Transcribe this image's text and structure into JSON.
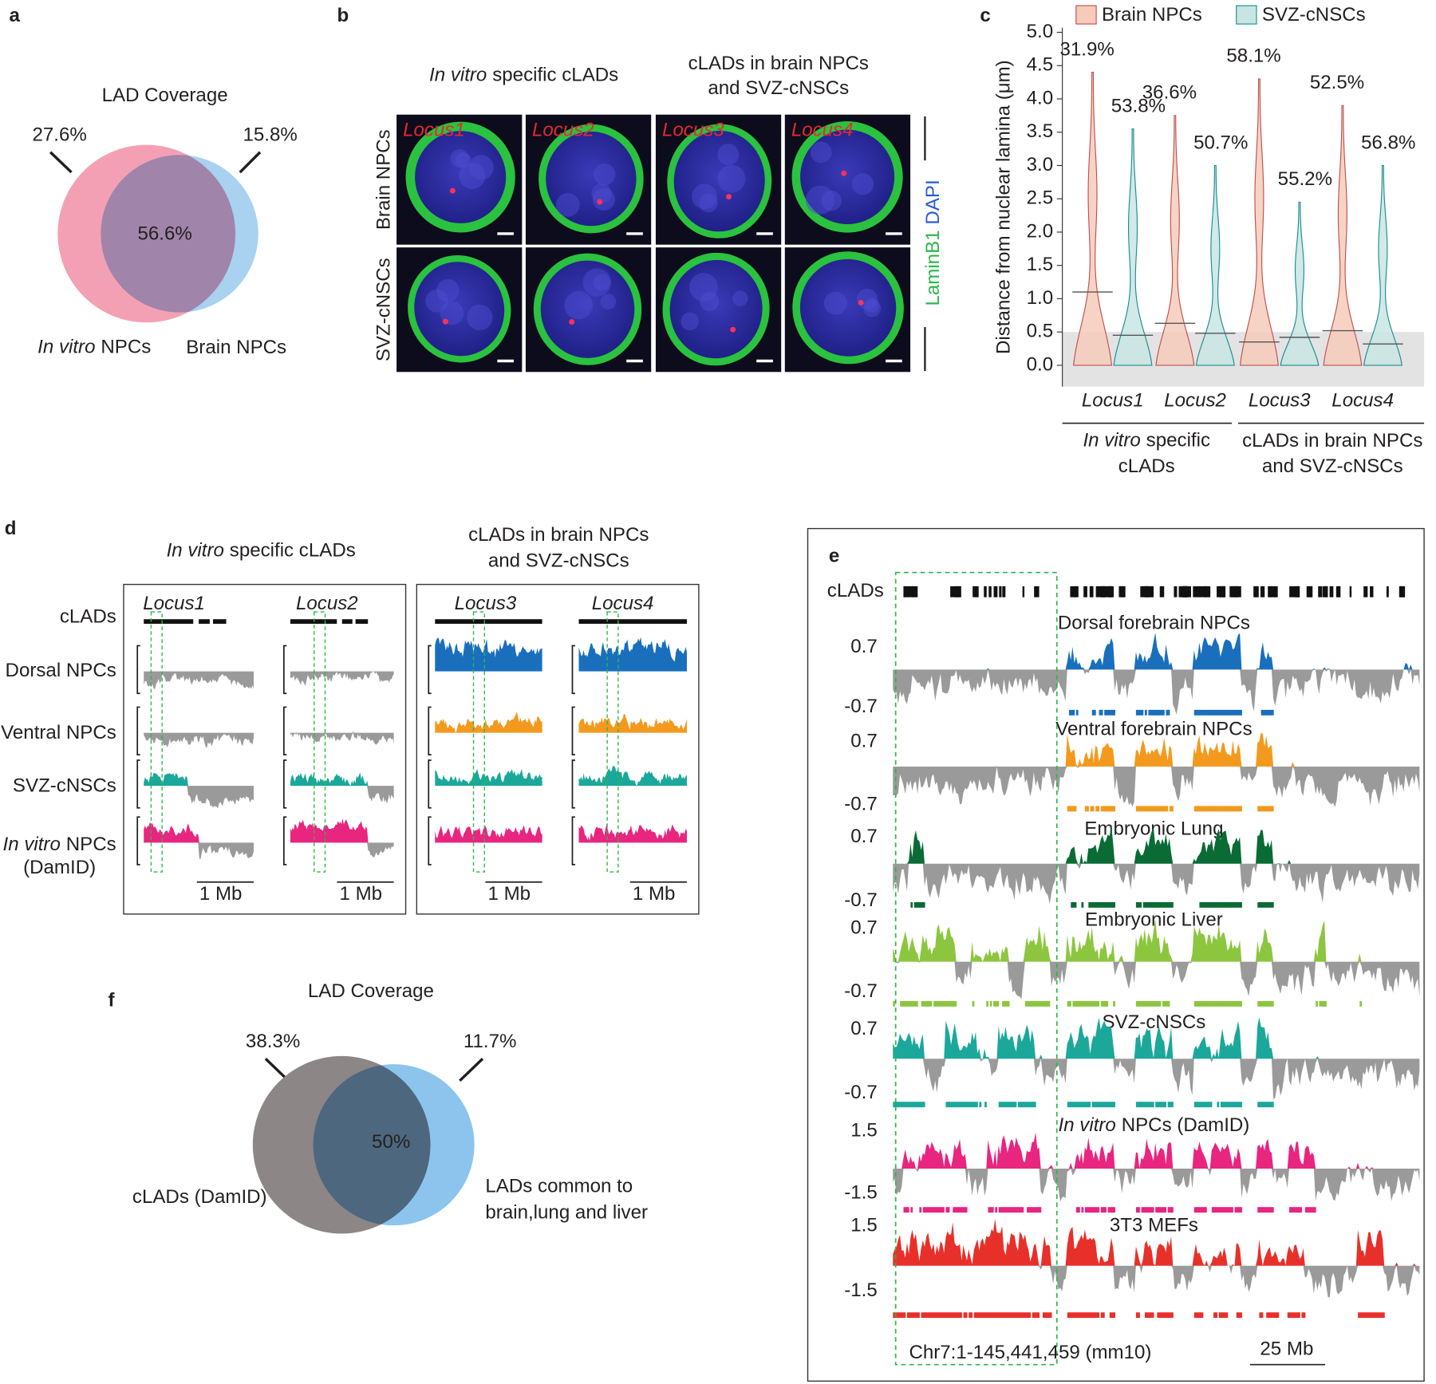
{
  "panel_labels": [
    "a",
    "b",
    "c",
    "d",
    "e",
    "f"
  ],
  "a": {
    "title": "LAD Coverage",
    "left_percent": "27.6%",
    "right_percent": "15.8%",
    "overlap_percent": "56.6%",
    "left_set": {
      "italic": "In vitro",
      "rest": "NPCs"
    },
    "right_set": "Brain NPCs"
  },
  "b": {
    "columns": [
      {
        "italic": "In vitro",
        "rest": "specific cLADs"
      },
      {
        "lines": [
          "cLADs in brain NPCs",
          "and SVZ-cNSCs"
        ]
      }
    ],
    "rows": [
      "Brain NPCs",
      "SVZ-cNSCs"
    ],
    "loci": [
      "Locus1",
      "Locus2",
      "Locus3",
      "Locus4"
    ],
    "stain": {
      "laminb1": "LaminB1",
      "dapi": "DAPI"
    }
  },
  "c": {
    "type": "violin",
    "y_label": "Distance from nuclear lamina (μm)",
    "ylim": [
      -0.32,
      5.07
    ],
    "yticks": [
      {
        "value": 0,
        "label": "0.0"
      },
      0.5,
      {
        "value": 1,
        "label": "1.0"
      },
      1.5,
      {
        "value": 2,
        "label": "2.0"
      },
      2.5,
      {
        "value": 3,
        "label": "3.0"
      },
      3.5,
      {
        "value": 4,
        "label": "4.0"
      },
      4.5,
      {
        "value": 5,
        "label": "5.0"
      }
    ],
    "threshold": 0.5,
    "categories": [
      "Locus1",
      "Locus2",
      "Locus3",
      "Locus4"
    ],
    "groups": [
      {
        "italic": "In vitro",
        "rest": "specific",
        "line2": "cLADs"
      },
      {
        "line1": "cLADs in brain NPCs",
        "line2": "and SVZ-cNSCs"
      }
    ],
    "series": [
      {
        "name": "Brain NPCs",
        "color": "#f6cbbb",
        "edge": "#c0504d",
        "max": [
          4.4,
          3.75,
          4.3,
          3.9
        ],
        "median": [
          1.1,
          0.63,
          0.35,
          0.52
        ],
        "percent_labels": [
          "31.9%",
          "36.6%",
          "58.1%",
          "52.5%"
        ]
      },
      {
        "name": "SVZ-cNSCs",
        "color": "#c9e5e3",
        "edge": "#1a8f8f",
        "max": [
          3.55,
          3.0,
          2.45,
          3.0
        ],
        "median": [
          0.45,
          0.48,
          0.42,
          0.32
        ],
        "percent_labels": [
          "53.8%",
          "50.7%",
          "55.2%",
          "56.8%"
        ]
      }
    ]
  },
  "d": {
    "columns": [
      {
        "italic": "In vitro",
        "rest": "specific cLADs"
      },
      {
        "lines": [
          "cLADs in brain NPCs",
          "and SVZ-cNSCs"
        ]
      }
    ],
    "track_labels": [
      "cLADs",
      "Dorsal NPCs",
      "Ventral NPCs",
      "SVZ-cNSCs"
    ],
    "damid_label": {
      "italic": "In vitro",
      "rest": "NPCs",
      "line2": "(DamID)"
    },
    "loci": [
      "Locus1",
      "Locus2",
      "Locus3",
      "Locus4"
    ],
    "scale_bar": "1 Mb",
    "colors": [
      "#1a6fbd",
      "#f39a1e",
      "#1ba89a",
      "#e8257f"
    ]
  },
  "e": {
    "clads_label": "cLADs",
    "tracks": [
      {
        "name": "Dorsal forebrain NPCs",
        "color": "#1a6fbd",
        "scale_top": "0.7",
        "scale_bottom": "-0.7"
      },
      {
        "name": "Ventral forebrain NPCs",
        "color": "#f39a1e",
        "scale_top": "0.7",
        "scale_bottom": "-0.7"
      },
      {
        "name": "Embryonic Lung",
        "color": "#0a6b35",
        "scale_top": "0.7",
        "scale_bottom": "-0.7"
      },
      {
        "name": "Embryonic Liver",
        "color": "#8cc63f",
        "scale_top": "0.7",
        "scale_bottom": "-0.7"
      },
      {
        "name": "SVZ-cNSCs",
        "color": "#1ba89a",
        "scale_top": "0.7",
        "scale_bottom": "-0.7"
      },
      {
        "italic": "In vitro",
        "name": "NPCs (DamID)",
        "color": "#e8257f",
        "scale_top": "1.5",
        "scale_bottom": "-1.5"
      },
      {
        "name": "3T3 MEFs",
        "color": "#e8302a",
        "scale_top": "1.5",
        "scale_bottom": "-1.5"
      }
    ],
    "coordinates": "Chr7:1-145,441,459 (mm10)",
    "scale_bar": "25 Mb"
  },
  "f": {
    "title": "LAD Coverage",
    "left_percent": "38.3%",
    "right_percent": "11.7%",
    "overlap_percent": "50%",
    "left_set": "cLADs (DamID)",
    "right_set": [
      "LADs common to",
      "brain,lung and liver"
    ]
  }
}
